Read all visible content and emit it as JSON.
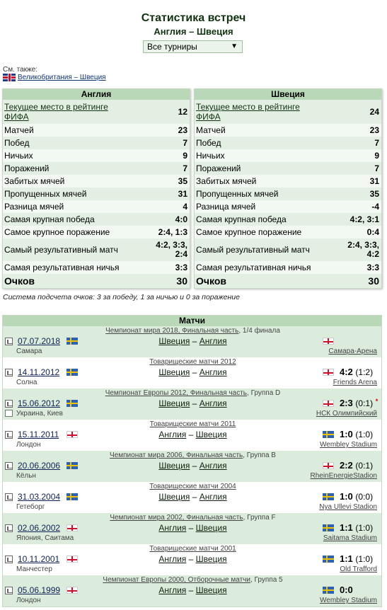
{
  "header": {
    "title": "Статистика встреч",
    "subtitle": "Англия – Швеция",
    "tournament_select": "Все турниры"
  },
  "see_also": {
    "label": "См. также:",
    "link": "Великобритания – Швеция"
  },
  "stats_left": {
    "team": "Англия",
    "rows": [
      {
        "label": "Текущее место в рейтинге ФИФА",
        "value": "12"
      },
      {
        "label": "Матчей",
        "value": "23"
      },
      {
        "label": "Побед",
        "value": "7"
      },
      {
        "label": "Ничьих",
        "value": "9"
      },
      {
        "label": "Поражений",
        "value": "7"
      },
      {
        "label": "Забитых мячей",
        "value": "35"
      },
      {
        "label": "Пропущенных мячей",
        "value": "31"
      },
      {
        "label": "Разница мячей",
        "value": "4"
      },
      {
        "label": "Самая крупная победа",
        "value": "4:0"
      },
      {
        "label": "Самое крупное поражение",
        "value": "2:4, 1:3"
      },
      {
        "label": "Самый результативный матч",
        "value": "4:2, 3:3, 2:4"
      },
      {
        "label": "Самая результативная ничья",
        "value": "3:3"
      },
      {
        "label": "Очков",
        "value": "30"
      }
    ]
  },
  "stats_right": {
    "team": "Швеция",
    "rows": [
      {
        "label": "Текущее место в рейтинге ФИФА",
        "value": "24"
      },
      {
        "label": "Матчей",
        "value": "23"
      },
      {
        "label": "Побед",
        "value": "7"
      },
      {
        "label": "Ничьих",
        "value": "9"
      },
      {
        "label": "Поражений",
        "value": "7"
      },
      {
        "label": "Забитых мячей",
        "value": "31"
      },
      {
        "label": "Пропущенных мячей",
        "value": "35"
      },
      {
        "label": "Разница мячей",
        "value": "-4"
      },
      {
        "label": "Самая крупная победа",
        "value": "4:2, 3:1"
      },
      {
        "label": "Самое крупное поражение",
        "value": "0:4"
      },
      {
        "label": "Самый результативный матч",
        "value": "2:4, 3:3, 4:2"
      },
      {
        "label": "Самая результативная ничья",
        "value": "3:3"
      },
      {
        "label": "Очков",
        "value": "30"
      }
    ]
  },
  "scoring_note": "Система подсчета очков: 3 за победу, 1 за ничью и 0 за поражение",
  "matches": {
    "title": "Матчи",
    "rows": [
      {
        "comp_link": "Чемпионат мира 2018, Финальная часть",
        "comp_rest": ", 1/4 финала",
        "date": "07.07.2018",
        "city": "Самара",
        "home": "Швеция",
        "away": "Англия",
        "score": "",
        "half": "",
        "venue": "Самара-Арена",
        "host_flag": "se",
        "score_flag": "en"
      },
      {
        "comp_link": "Товарищеские матчи 2012",
        "comp_rest": "",
        "date": "14.11.2012",
        "city": "Солна",
        "home": "Швеция",
        "away": "Англия",
        "score": "4:2",
        "half": "(1:2)",
        "venue": "Friends Arena",
        "host_flag": "se",
        "score_flag": "en"
      },
      {
        "comp_link": "Чемпионат Европы 2012, Финальная часть",
        "comp_rest": ", Группа D",
        "date": "15.06.2012",
        "city": "Украина, Киев",
        "home": "Швеция",
        "away": "Англия",
        "score": "2:3",
        "half": "(0:1)",
        "venue": "НСК Олимпийский",
        "host_flag": "se",
        "score_flag": "en",
        "star": "*"
      },
      {
        "comp_link": "Товарищеские матчи 2011",
        "comp_rest": "",
        "date": "15.11.2011",
        "city": "Лондон",
        "home": "Англия",
        "away": "Швеция",
        "score": "1:0",
        "half": "(1:0)",
        "venue": "Wembley Stadium",
        "host_flag": "en",
        "score_flag": "se"
      },
      {
        "comp_link": "Чемпионат мира 2006, Финальная часть",
        "comp_rest": ", Группа B",
        "date": "20.06.2006",
        "city": "Кёльн",
        "home": "Швеция",
        "away": "Англия",
        "score": "2:2",
        "half": "(0:1)",
        "venue": "RheinEnergieStadion",
        "host_flag": "se",
        "score_flag": "en"
      },
      {
        "comp_link": "Товарищеские матчи 2004",
        "comp_rest": "",
        "date": "31.03.2004",
        "city": "Гетеборг",
        "home": "Швеция",
        "away": "Англия",
        "score": "1:0",
        "half": "(0:0)",
        "venue": "Nya Ullevi Stadion",
        "host_flag": "se",
        "score_flag": "se"
      },
      {
        "comp_link": "Чемпионат мира 2002, Финальная часть",
        "comp_rest": ", Группа F",
        "date": "02.06.2002",
        "city": "Япония, Саитама",
        "home": "Англия",
        "away": "Швеция",
        "score": "1:1",
        "half": "(1:0)",
        "venue": "Saitama Stadium",
        "host_flag": "en",
        "score_flag": "se"
      },
      {
        "comp_link": "Товарищеские матчи 2001",
        "comp_rest": "",
        "date": "10.11.2001",
        "city": "Манчестер",
        "home": "Англия",
        "away": "Швеция",
        "score": "1:1",
        "half": "(1:0)",
        "venue": "Old Trafford",
        "host_flag": "en",
        "score_flag": "se"
      },
      {
        "comp_link": "Чемпионат Европы 2000, Отборочные матчи",
        "comp_rest": ", Группа 5",
        "date": "05.06.1999",
        "city": "Лондон",
        "home": "Англия",
        "away": "Швеция",
        "score": "0:0",
        "half": "",
        "venue": "Wembley Stadium",
        "host_flag": "en",
        "score_flag": "se"
      }
    ]
  },
  "colors": {
    "header_green": "#b8d8b8",
    "row_green": "#dcecdc",
    "title": "#113311"
  }
}
